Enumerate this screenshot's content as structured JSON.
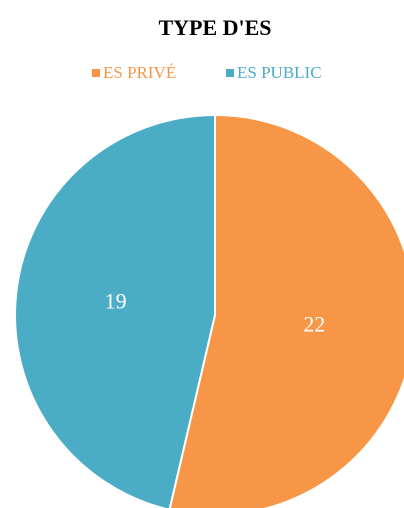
{
  "chart_data": {
    "type": "pie",
    "title": "TYPE D'ES",
    "categories": [
      "ES PRIVÉ",
      "ES PUBLIC"
    ],
    "values": [
      22,
      19
    ],
    "colors": [
      "#F79646",
      "#4BACC6"
    ],
    "legend": "top"
  }
}
